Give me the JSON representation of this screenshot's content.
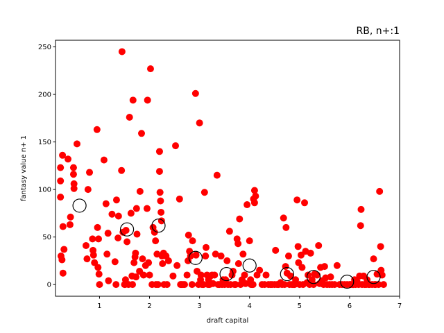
{
  "chart_data": {
    "type": "scatter",
    "title": "RB, n+:1",
    "xlabel": "draft capital",
    "ylabel": "fantasy value n+ 1",
    "xlim": [
      0.12,
      7.0
    ],
    "ylim": [
      -12.3,
      257
    ],
    "xticks": [
      1,
      2,
      3,
      4,
      5,
      6,
      7
    ],
    "yticks": [
      0,
      50,
      100,
      150,
      200,
      250
    ],
    "grid": false,
    "colors": {
      "points": "#ff0000",
      "means": "#000000"
    },
    "series": [
      {
        "marker": "filled-circle",
        "points": [
          [
            0.22,
            123
          ],
          [
            0.22,
            109
          ],
          [
            0.22,
            92
          ],
          [
            0.23,
            30
          ],
          [
            0.25,
            26
          ],
          [
            0.26,
            136
          ],
          [
            0.27,
            12
          ],
          [
            0.27,
            61
          ],
          [
            0.29,
            37
          ],
          [
            0.37,
            132
          ],
          [
            0.41,
            63
          ],
          [
            0.42,
            71
          ],
          [
            0.48,
            123
          ],
          [
            0.48,
            116
          ],
          [
            0.49,
            101
          ],
          [
            0.49,
            106
          ],
          [
            0.55,
            148
          ],
          [
            0.73,
            41
          ],
          [
            0.75,
            27
          ],
          [
            0.77,
            100
          ],
          [
            0.8,
            118
          ],
          [
            0.86,
            48
          ],
          [
            0.87,
            36
          ],
          [
            0.88,
            31
          ],
          [
            0.9,
            23
          ],
          [
            0.95,
            163
          ],
          [
            0.96,
            60
          ],
          [
            0.97,
            18
          ],
          [
            0.98,
            48
          ],
          [
            0.99,
            11
          ],
          [
            1.0,
            0
          ],
          [
            1.09,
            131
          ],
          [
            1.13,
            85
          ],
          [
            1.15,
            32
          ],
          [
            1.17,
            54
          ],
          [
            1.18,
            4
          ],
          [
            1.25,
            74
          ],
          [
            1.31,
            24
          ],
          [
            1.33,
            0
          ],
          [
            1.34,
            89
          ],
          [
            1.37,
            49
          ],
          [
            1.38,
            72
          ],
          [
            1.44,
            120
          ],
          [
            1.45,
            245
          ],
          [
            1.47,
            55
          ],
          [
            1.5,
            0
          ],
          [
            1.51,
            0
          ],
          [
            1.52,
            5
          ],
          [
            1.53,
            57
          ],
          [
            1.55,
            45
          ],
          [
            1.58,
            0
          ],
          [
            1.6,
            176
          ],
          [
            1.63,
            75
          ],
          [
            1.65,
            9
          ],
          [
            1.66,
            0
          ],
          [
            1.67,
            194
          ],
          [
            1.69,
            23
          ],
          [
            1.71,
            29
          ],
          [
            1.72,
            33
          ],
          [
            1.73,
            8
          ],
          [
            1.74,
            80
          ],
          [
            1.75,
            53
          ],
          [
            1.8,
            14
          ],
          [
            1.81,
            98
          ],
          [
            1.84,
            159
          ],
          [
            1.86,
            27
          ],
          [
            1.88,
            10
          ],
          [
            1.92,
            20
          ],
          [
            1.95,
            80
          ],
          [
            1.96,
            194
          ],
          [
            1.98,
            23
          ],
          [
            2.0,
            10
          ],
          [
            2.02,
            227
          ],
          [
            2.05,
            0
          ],
          [
            2.07,
            60
          ],
          [
            2.1,
            55
          ],
          [
            2.12,
            46
          ],
          [
            2.13,
            0
          ],
          [
            2.15,
            32
          ],
          [
            2.17,
            0
          ],
          [
            2.2,
            140
          ],
          [
            2.2,
            119
          ],
          [
            2.21,
            97
          ],
          [
            2.22,
            88
          ],
          [
            2.23,
            76
          ],
          [
            2.24,
            67
          ],
          [
            2.25,
            30
          ],
          [
            2.26,
            22
          ],
          [
            2.28,
            33
          ],
          [
            2.29,
            0
          ],
          [
            2.33,
            30
          ],
          [
            2.35,
            0
          ],
          [
            2.38,
            25
          ],
          [
            2.47,
            9
          ],
          [
            2.52,
            146
          ],
          [
            2.55,
            20
          ],
          [
            2.6,
            90
          ],
          [
            2.62,
            0
          ],
          [
            2.64,
            0
          ],
          [
            2.67,
            0
          ],
          [
            2.7,
            0
          ],
          [
            2.75,
            10
          ],
          [
            2.77,
            25
          ],
          [
            2.78,
            52
          ],
          [
            2.8,
            35
          ],
          [
            2.82,
            30
          ],
          [
            2.85,
            0
          ],
          [
            2.86,
            46
          ],
          [
            2.92,
            201
          ],
          [
            2.93,
            31
          ],
          [
            2.95,
            14
          ],
          [
            2.98,
            0
          ],
          [
            3.0,
            170
          ],
          [
            3.02,
            5
          ],
          [
            3.03,
            10
          ],
          [
            3.05,
            0
          ],
          [
            3.08,
            0
          ],
          [
            3.1,
            97
          ],
          [
            3.12,
            30
          ],
          [
            3.13,
            39
          ],
          [
            3.15,
            10
          ],
          [
            3.17,
            0
          ],
          [
            3.18,
            5
          ],
          [
            3.2,
            0
          ],
          [
            3.22,
            9
          ],
          [
            3.25,
            10
          ],
          [
            3.27,
            1
          ],
          [
            3.3,
            10
          ],
          [
            3.32,
            32
          ],
          [
            3.35,
            115
          ],
          [
            3.37,
            0
          ],
          [
            3.4,
            0
          ],
          [
            3.43,
            30
          ],
          [
            3.45,
            0
          ],
          [
            3.47,
            5
          ],
          [
            3.5,
            0
          ],
          [
            3.52,
            5
          ],
          [
            3.55,
            25
          ],
          [
            3.57,
            0
          ],
          [
            3.6,
            56
          ],
          [
            3.62,
            0
          ],
          [
            3.65,
            10
          ],
          [
            3.67,
            14
          ],
          [
            3.7,
            0
          ],
          [
            3.72,
            0
          ],
          [
            3.75,
            48
          ],
          [
            3.77,
            43
          ],
          [
            3.78,
            22
          ],
          [
            3.8,
            69
          ],
          [
            3.82,
            0
          ],
          [
            3.85,
            5
          ],
          [
            3.87,
            32
          ],
          [
            3.9,
            10
          ],
          [
            3.92,
            1
          ],
          [
            3.95,
            84
          ],
          [
            4.0,
            46
          ],
          [
            4.02,
            5
          ],
          [
            4.03,
            0
          ],
          [
            4.05,
            0
          ],
          [
            4.07,
            0
          ],
          [
            4.08,
            90
          ],
          [
            4.1,
            99
          ],
          [
            4.1,
            86
          ],
          [
            4.12,
            93
          ],
          [
            4.15,
            10
          ],
          [
            4.2,
            15
          ],
          [
            4.25,
            0
          ],
          [
            4.3,
            0
          ],
          [
            4.33,
            10
          ],
          [
            4.38,
            0
          ],
          [
            4.42,
            0
          ],
          [
            4.45,
            0
          ],
          [
            4.5,
            0
          ],
          [
            4.52,
            36
          ],
          [
            4.55,
            0
          ],
          [
            4.58,
            0
          ],
          [
            4.62,
            2
          ],
          [
            4.65,
            0
          ],
          [
            4.68,
            70
          ],
          [
            4.7,
            0
          ],
          [
            4.72,
            19
          ],
          [
            4.73,
            60
          ],
          [
            4.75,
            12
          ],
          [
            4.78,
            30
          ],
          [
            4.8,
            0
          ],
          [
            4.82,
            9
          ],
          [
            4.85,
            0
          ],
          [
            4.88,
            0
          ],
          [
            4.9,
            0
          ],
          [
            4.92,
            5
          ],
          [
            4.95,
            89
          ],
          [
            4.97,
            40
          ],
          [
            4.98,
            23
          ],
          [
            5.0,
            0
          ],
          [
            5.03,
            31
          ],
          [
            5.05,
            18
          ],
          [
            5.07,
            0
          ],
          [
            5.1,
            86
          ],
          [
            5.12,
            35
          ],
          [
            5.15,
            2
          ],
          [
            5.17,
            10
          ],
          [
            5.2,
            0
          ],
          [
            5.22,
            33
          ],
          [
            5.25,
            5
          ],
          [
            5.28,
            0
          ],
          [
            5.3,
            11
          ],
          [
            5.35,
            10
          ],
          [
            5.38,
            41
          ],
          [
            5.4,
            1
          ],
          [
            5.42,
            18
          ],
          [
            5.45,
            4
          ],
          [
            5.48,
            0
          ],
          [
            5.5,
            19
          ],
          [
            5.52,
            7
          ],
          [
            5.55,
            0
          ],
          [
            5.6,
            0
          ],
          [
            5.62,
            8
          ],
          [
            5.65,
            0
          ],
          [
            5.7,
            0
          ],
          [
            5.75,
            20
          ],
          [
            5.8,
            0
          ],
          [
            5.85,
            0
          ],
          [
            5.9,
            0
          ],
          [
            5.95,
            0
          ],
          [
            6.0,
            0
          ],
          [
            6.02,
            0
          ],
          [
            6.05,
            0
          ],
          [
            6.08,
            0
          ],
          [
            6.1,
            5
          ],
          [
            6.12,
            0
          ],
          [
            6.15,
            3
          ],
          [
            6.18,
            0
          ],
          [
            6.2,
            9
          ],
          [
            6.22,
            62
          ],
          [
            6.23,
            79
          ],
          [
            6.25,
            0
          ],
          [
            6.28,
            9
          ],
          [
            6.3,
            0
          ],
          [
            6.33,
            0
          ],
          [
            6.35,
            5
          ],
          [
            6.38,
            0
          ],
          [
            6.4,
            0
          ],
          [
            6.45,
            0
          ],
          [
            6.48,
            27
          ],
          [
            6.5,
            0
          ],
          [
            6.52,
            0
          ],
          [
            6.55,
            11
          ],
          [
            6.58,
            0
          ],
          [
            6.6,
            98
          ],
          [
            6.62,
            40
          ],
          [
            6.63,
            15
          ],
          [
            6.65,
            10
          ],
          [
            6.68,
            0
          ]
        ]
      },
      {
        "marker": "open-circle",
        "points": [
          [
            0.6,
            83
          ],
          [
            1.55,
            58
          ],
          [
            2.18,
            62
          ],
          [
            2.92,
            28
          ],
          [
            3.54,
            11
          ],
          [
            4.0,
            20
          ],
          [
            4.75,
            11
          ],
          [
            5.28,
            8
          ],
          [
            5.95,
            3
          ],
          [
            6.48,
            8
          ]
        ]
      }
    ]
  }
}
